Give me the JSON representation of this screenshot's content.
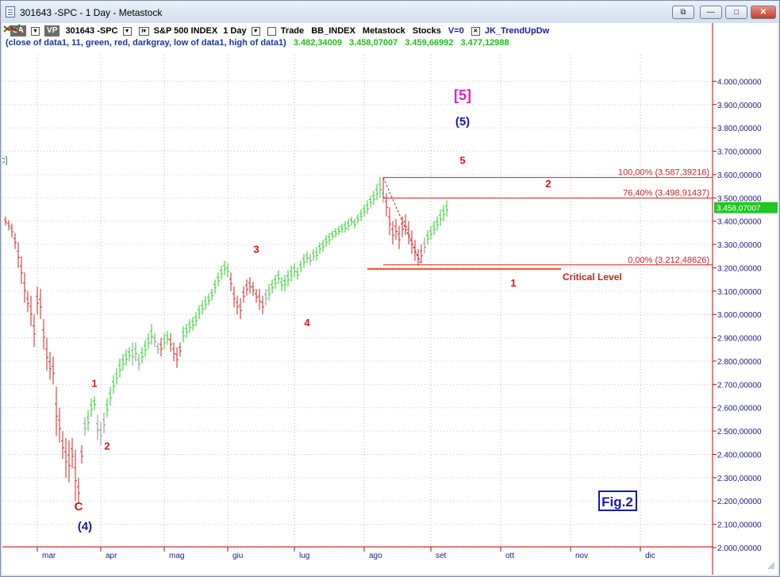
{
  "window": {
    "title": "301643 -SPC - 1 Day - Metastock",
    "buttons": {
      "restore2": "⧉",
      "minimize": "—",
      "maximize": "□",
      "close": "✕"
    }
  },
  "header": {
    "tag_sa": "SA",
    "tag_vp": "VP",
    "symbol": "301643 -SPC",
    "interval_box": "I▾",
    "instrument": "S&P 500 INDEX",
    "period": "1 Day",
    "trade": "Trade",
    "exchange": "BB_INDEX",
    "source": "Metastock",
    "asset_class": "Stocks",
    "volume": "V=0",
    "indicator": "JK_TrendUpDw"
  },
  "legend": {
    "args": "(close of data1,  11,  green,  red,  darkgray,  low of data1,  high of data1)",
    "values": [
      "3.482,34009",
      "3.458,07007",
      "3.459,66992",
      "3.477,12988"
    ]
  },
  "colors": {
    "up": "#22cc22",
    "down": "#cc2222",
    "neutral": "#8c8c8c",
    "axis": "#cc0000",
    "wave_blue": "#1a1aa6",
    "wave_magenta": "#e020c0",
    "fib": "#cc2222",
    "last_price_bg": "#22c522"
  },
  "chart_data": {
    "type": "bar",
    "instrument": "S&P 500 INDEX",
    "ylim": [
      2000,
      4100
    ],
    "y_ticks": [
      "4.000,00000",
      "3.900,00000",
      "3.800,00000",
      "3.700,00000",
      "3.600,00000",
      "3.500,00000",
      "3.400,00000",
      "3.300,00000",
      "3.200,00000",
      "3.100,00000",
      "3.000,00000",
      "2.900,00000",
      "2.800,00000",
      "2.700,00000",
      "2.600,00000",
      "2.500,00000",
      "2.400,00000",
      "2.300,00000",
      "2.200,00000",
      "2.100,00000",
      "2.000,00000"
    ],
    "y_tick_values": [
      4000,
      3900,
      3800,
      3700,
      3600,
      3500,
      3400,
      3300,
      3200,
      3100,
      3000,
      2900,
      2800,
      2700,
      2600,
      2500,
      2400,
      2300,
      2200,
      2100,
      2000
    ],
    "x_months": [
      "mar",
      "apr",
      "mag",
      "giu",
      "lug",
      "ago",
      "set",
      "ott",
      "nov",
      "dic"
    ],
    "x_month_days": [
      20,
      40,
      60,
      80,
      101,
      123,
      144,
      166,
      188,
      210
    ],
    "day_span": [
      0,
      230
    ],
    "last_price": "3.458,07007",
    "last_price_value": 3458,
    "series": [
      {
        "name": "JK_TrendUpDw",
        "values": []
      }
    ],
    "fib_levels": [
      {
        "label": "100,00% (3.587,39216)",
        "value": 3587.39
      },
      {
        "label": "76,40% (3.498,91437)",
        "value": 3498.91
      },
      {
        "label": "0,00% (3.212,48626)",
        "value": 3212.49
      }
    ],
    "critical_level": {
      "label": "Critical Level",
      "value": 3195,
      "from_day": 114,
      "to_day": 175
    },
    "wave_labels": [
      {
        "text": "[5]",
        "day": 144,
        "price": 3920,
        "color": "magenta"
      },
      {
        "text": "(5)",
        "day": 144,
        "price": 3810,
        "color": "blue"
      },
      {
        "text": "5",
        "day": 144,
        "price": 3645,
        "color": "red"
      },
      {
        "text": "2",
        "day": 171,
        "price": 3545,
        "color": "red"
      },
      {
        "text": "3",
        "day": 79,
        "price": 3265,
        "color": "red"
      },
      {
        "text": "4",
        "day": 95,
        "price": 2950,
        "color": "red"
      },
      {
        "text": "1",
        "day": 160,
        "price": 3120,
        "color": "red"
      },
      {
        "text": "1",
        "day": 28,
        "price": 2690,
        "color": "red"
      },
      {
        "text": "2",
        "day": 32,
        "price": 2420,
        "color": "red"
      },
      {
        "text": "C",
        "day": 23,
        "price": 2160,
        "color": "red"
      },
      {
        "text": "(4)",
        "day": 25,
        "price": 2075,
        "color": "blue"
      }
    ],
    "annotation_box": "Fig.2",
    "left_label": "c]",
    "bars": [
      [
        0,
        3380,
        3420,
        "d"
      ],
      [
        1,
        3360,
        3405,
        "d"
      ],
      [
        2,
        3330,
        3390,
        "d"
      ],
      [
        3,
        3280,
        3350,
        "d"
      ],
      [
        4,
        3200,
        3310,
        "d"
      ],
      [
        5,
        3130,
        3250,
        "d"
      ],
      [
        6,
        3050,
        3180,
        "d"
      ],
      [
        7,
        3010,
        3100,
        "d"
      ],
      [
        8,
        2950,
        3080,
        "d"
      ],
      [
        9,
        2860,
        3000,
        "d"
      ],
      [
        10,
        3000,
        3120,
        "d"
      ],
      [
        11,
        2980,
        3110,
        "d"
      ],
      [
        12,
        2850,
        2980,
        "d"
      ],
      [
        13,
        2760,
        2900,
        "d"
      ],
      [
        14,
        2720,
        2840,
        "d"
      ],
      [
        15,
        2700,
        2820,
        "d"
      ],
      [
        16,
        2480,
        2690,
        "d"
      ],
      [
        17,
        2450,
        2600,
        "d"
      ],
      [
        18,
        2380,
        2500,
        "d"
      ],
      [
        19,
        2300,
        2470,
        "d"
      ],
      [
        20,
        2280,
        2460,
        "d"
      ],
      [
        21,
        2340,
        2470,
        "d"
      ],
      [
        22,
        2200,
        2420,
        "d"
      ],
      [
        23,
        2190,
        2300,
        "d"
      ],
      [
        24,
        2360,
        2440,
        "d"
      ],
      [
        25,
        2480,
        2560,
        "n"
      ],
      [
        26,
        2500,
        2590,
        "u"
      ],
      [
        27,
        2560,
        2640,
        "u"
      ],
      [
        28,
        2590,
        2650,
        "u"
      ],
      [
        29,
        2460,
        2570,
        "n"
      ],
      [
        30,
        2440,
        2540,
        "n"
      ],
      [
        31,
        2490,
        2580,
        "n"
      ],
      [
        32,
        2560,
        2640,
        "u"
      ],
      [
        33,
        2610,
        2690,
        "u"
      ],
      [
        34,
        2660,
        2740,
        "u"
      ],
      [
        35,
        2700,
        2770,
        "u"
      ],
      [
        36,
        2730,
        2810,
        "u"
      ],
      [
        37,
        2760,
        2830,
        "u"
      ],
      [
        38,
        2780,
        2850,
        "u"
      ],
      [
        39,
        2800,
        2860,
        "u"
      ],
      [
        40,
        2780,
        2880,
        "n"
      ],
      [
        41,
        2800,
        2880,
        "u"
      ],
      [
        42,
        2760,
        2830,
        "n"
      ],
      [
        43,
        2790,
        2860,
        "u"
      ],
      [
        44,
        2820,
        2890,
        "u"
      ],
      [
        45,
        2850,
        2920,
        "u"
      ],
      [
        46,
        2870,
        2960,
        "u"
      ],
      [
        47,
        2860,
        2920,
        "n"
      ],
      [
        48,
        2830,
        2880,
        "n"
      ],
      [
        49,
        2820,
        2900,
        "d"
      ],
      [
        50,
        2850,
        2920,
        "u"
      ],
      [
        51,
        2870,
        2930,
        "u"
      ],
      [
        52,
        2840,
        2920,
        "d"
      ],
      [
        53,
        2800,
        2880,
        "d"
      ],
      [
        54,
        2770,
        2860,
        "d"
      ],
      [
        55,
        2820,
        2880,
        "d"
      ],
      [
        56,
        2880,
        2950,
        "u"
      ],
      [
        57,
        2900,
        2960,
        "u"
      ],
      [
        58,
        2920,
        2980,
        "u"
      ],
      [
        59,
        2930,
        2990,
        "u"
      ],
      [
        60,
        2950,
        3010,
        "u"
      ],
      [
        61,
        2980,
        3040,
        "u"
      ],
      [
        62,
        3000,
        3060,
        "u"
      ],
      [
        63,
        3020,
        3080,
        "u"
      ],
      [
        64,
        3040,
        3090,
        "u"
      ],
      [
        65,
        3060,
        3110,
        "u"
      ],
      [
        66,
        3090,
        3150,
        "u"
      ],
      [
        67,
        3120,
        3180,
        "u"
      ],
      [
        68,
        3150,
        3210,
        "u"
      ],
      [
        69,
        3170,
        3230,
        "u"
      ],
      [
        70,
        3160,
        3220,
        "u"
      ],
      [
        71,
        3100,
        3180,
        "d"
      ],
      [
        72,
        3030,
        3120,
        "d"
      ],
      [
        73,
        3000,
        3080,
        "d"
      ],
      [
        74,
        2980,
        3070,
        "d"
      ],
      [
        75,
        3050,
        3120,
        "d"
      ],
      [
        76,
        3080,
        3150,
        "d"
      ],
      [
        77,
        3090,
        3160,
        "d"
      ],
      [
        78,
        3080,
        3140,
        "d"
      ],
      [
        79,
        3050,
        3110,
        "d"
      ],
      [
        80,
        3020,
        3110,
        "d"
      ],
      [
        81,
        3000,
        3080,
        "d"
      ],
      [
        82,
        3040,
        3110,
        "n"
      ],
      [
        83,
        3060,
        3130,
        "u"
      ],
      [
        84,
        3090,
        3150,
        "u"
      ],
      [
        85,
        3110,
        3170,
        "u"
      ],
      [
        86,
        3130,
        3190,
        "u"
      ],
      [
        87,
        3100,
        3160,
        "u"
      ],
      [
        88,
        3100,
        3170,
        "u"
      ],
      [
        89,
        3120,
        3190,
        "u"
      ],
      [
        90,
        3140,
        3210,
        "u"
      ],
      [
        91,
        3160,
        3220,
        "u"
      ],
      [
        92,
        3150,
        3200,
        "u"
      ],
      [
        93,
        3180,
        3230,
        "u"
      ],
      [
        94,
        3200,
        3260,
        "u"
      ],
      [
        95,
        3220,
        3270,
        "u"
      ],
      [
        96,
        3210,
        3260,
        "n"
      ],
      [
        97,
        3230,
        3280,
        "u"
      ],
      [
        98,
        3230,
        3290,
        "u"
      ],
      [
        99,
        3260,
        3310,
        "u"
      ],
      [
        100,
        3270,
        3320,
        "u"
      ],
      [
        101,
        3290,
        3340,
        "u"
      ],
      [
        102,
        3300,
        3350,
        "u"
      ],
      [
        103,
        3320,
        3360,
        "u"
      ],
      [
        104,
        3330,
        3370,
        "u"
      ],
      [
        105,
        3340,
        3380,
        "u"
      ],
      [
        106,
        3350,
        3390,
        "u"
      ],
      [
        107,
        3350,
        3400,
        "u"
      ],
      [
        108,
        3360,
        3410,
        "u"
      ],
      [
        109,
        3380,
        3420,
        "u"
      ],
      [
        110,
        3370,
        3410,
        "u"
      ],
      [
        111,
        3390,
        3430,
        "u"
      ],
      [
        112,
        3400,
        3450,
        "u"
      ],
      [
        113,
        3420,
        3470,
        "u"
      ],
      [
        114,
        3430,
        3490,
        "u"
      ],
      [
        115,
        3460,
        3510,
        "u"
      ],
      [
        116,
        3470,
        3530,
        "u"
      ],
      [
        117,
        3490,
        3560,
        "u"
      ],
      [
        118,
        3500,
        3590,
        "u"
      ],
      [
        119,
        3480,
        3540,
        "n"
      ],
      [
        120,
        3420,
        3520,
        "d"
      ],
      [
        121,
        3340,
        3460,
        "d"
      ],
      [
        122,
        3300,
        3400,
        "d"
      ],
      [
        123,
        3320,
        3410,
        "d"
      ],
      [
        124,
        3280,
        3380,
        "d"
      ],
      [
        125,
        3330,
        3420,
        "d"
      ],
      [
        126,
        3340,
        3430,
        "d"
      ],
      [
        127,
        3300,
        3400,
        "d"
      ],
      [
        128,
        3260,
        3360,
        "d"
      ],
      [
        129,
        3230,
        3320,
        "d"
      ],
      [
        130,
        3210,
        3280,
        "d"
      ],
      [
        131,
        3220,
        3300,
        "d"
      ],
      [
        132,
        3260,
        3330,
        "n"
      ],
      [
        133,
        3300,
        3360,
        "u"
      ],
      [
        134,
        3320,
        3380,
        "u"
      ],
      [
        135,
        3340,
        3400,
        "u"
      ],
      [
        136,
        3360,
        3420,
        "u"
      ],
      [
        137,
        3380,
        3450,
        "u"
      ],
      [
        138,
        3400,
        3470,
        "u"
      ],
      [
        139,
        3420,
        3490,
        "u"
      ]
    ]
  }
}
